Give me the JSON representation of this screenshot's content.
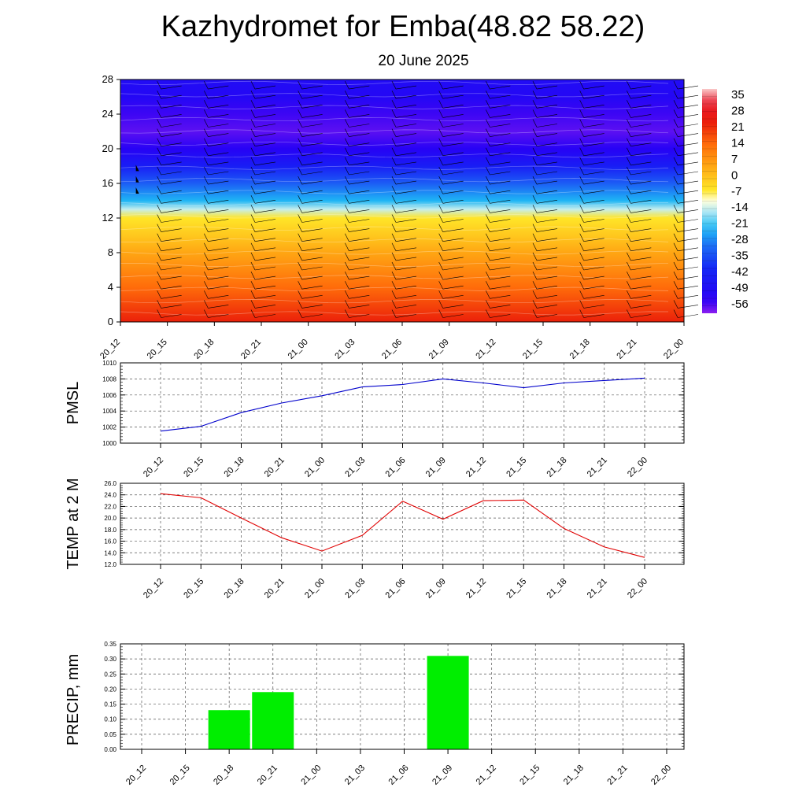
{
  "page": {
    "title": "Kazhydromet for Emba(48.82 58.22)",
    "subtitle": "20 June 2025"
  },
  "chart_data": [
    {
      "type": "heatmap",
      "title": "",
      "ylim": [
        0,
        28
      ],
      "y_ticks": [
        "0",
        "4",
        "8",
        "12",
        "16",
        "20",
        "24",
        "28"
      ],
      "x_ticks": [
        "20_12",
        "20_15",
        "20_18",
        "20_21",
        "21_00",
        "21_03",
        "21_06",
        "21_09",
        "21_12",
        "21_15",
        "21_18",
        "21_21",
        "22_00"
      ],
      "colorbar_labels": [
        "35",
        "28",
        "21",
        "14",
        "7",
        "0",
        "-7",
        "-14",
        "-21",
        "-28",
        "-35",
        "-42",
        "-49",
        "-56"
      ],
      "colorbar_range": [
        -63,
        42
      ],
      "temperature_profile": [
        {
          "h": 0,
          "t": 26
        },
        {
          "h": 2,
          "t": 21
        },
        {
          "h": 4,
          "t": 16
        },
        {
          "h": 6,
          "t": 11
        },
        {
          "h": 8,
          "t": 6
        },
        {
          "h": 10,
          "t": 0
        },
        {
          "h": 12,
          "t": -5
        },
        {
          "h": 13,
          "t": -14
        },
        {
          "h": 14,
          "t": -24
        },
        {
          "h": 16,
          "t": -34
        },
        {
          "h": 18,
          "t": -46
        },
        {
          "h": 20,
          "t": -56
        },
        {
          "h": 22,
          "t": -60
        },
        {
          "h": 24,
          "t": -58
        },
        {
          "h": 26,
          "t": -54
        },
        {
          "h": 28,
          "t": -52
        }
      ],
      "grid": false,
      "overlay": "wind barbs"
    },
    {
      "type": "line",
      "ylabel": "PMSL",
      "ylim": [
        1000,
        1010
      ],
      "y_ticks": [
        "1000",
        "1002",
        "1004",
        "1006",
        "1008",
        "1010"
      ],
      "x": [
        "20_12",
        "20_15",
        "20_18",
        "20_21",
        "21_00",
        "21_03",
        "21_06",
        "21_09",
        "21_12",
        "21_15",
        "21_18",
        "21_21",
        "22_00"
      ],
      "values": [
        1001.5,
        1002.1,
        1003.8,
        1005.0,
        1005.9,
        1007.0,
        1007.3,
        1008.0,
        1007.5,
        1006.9,
        1007.5,
        1007.8,
        1008.1
      ],
      "color": "#0000cc",
      "grid": true
    },
    {
      "type": "line",
      "ylabel": "TEMP at 2 M",
      "ylim": [
        12,
        26
      ],
      "y_ticks": [
        "12.0",
        "14.0",
        "16.0",
        "18.0",
        "20.0",
        "22.0",
        "24.0",
        "26.0"
      ],
      "x": [
        "20_12",
        "20_15",
        "20_18",
        "20_21",
        "21_00",
        "21_03",
        "21_06",
        "21_09",
        "21_12",
        "21_15",
        "21_18",
        "21_21",
        "22_00"
      ],
      "values": [
        24.2,
        23.5,
        20.0,
        16.6,
        14.3,
        17.0,
        22.9,
        19.8,
        23.0,
        23.1,
        18.2,
        15.0,
        13.2
      ],
      "color": "#e00000",
      "grid": true
    },
    {
      "type": "bar",
      "ylabel": "PRECIP, mm",
      "ylim": [
        0,
        0.35
      ],
      "y_ticks": [
        "0.00",
        "0.05",
        "0.10",
        "0.15",
        "0.20",
        "0.25",
        "0.30",
        "0.35"
      ],
      "categories": [
        "20_12",
        "20_15",
        "20_18",
        "20_21",
        "21_00",
        "21_03",
        "21_06",
        "21_09",
        "21_12",
        "21_15",
        "21_18",
        "21_21",
        "22_00"
      ],
      "values": [
        0,
        0,
        0.13,
        0.19,
        0,
        0,
        0,
        0.31,
        0,
        0,
        0,
        0,
        0
      ],
      "color": "#00ee00",
      "grid": true
    }
  ]
}
